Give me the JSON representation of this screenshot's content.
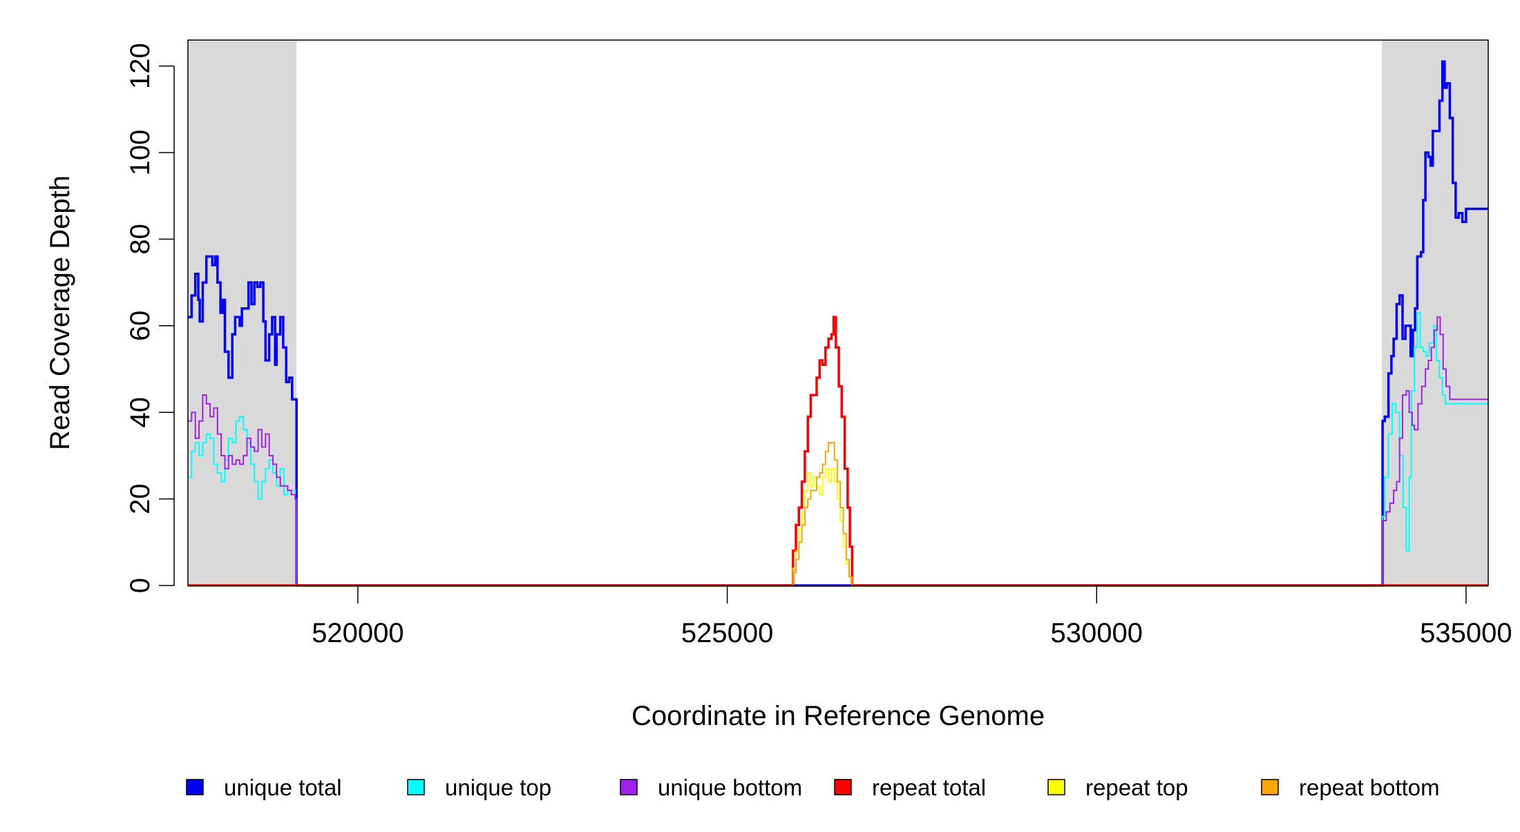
{
  "chart_data": {
    "type": "line",
    "title": "",
    "xlabel": "Coordinate in Reference Genome",
    "ylabel": "Read Coverage Depth",
    "xlim": [
      517700,
      535300
    ],
    "ylim": [
      0,
      126
    ],
    "x_ticks": [
      520000,
      525000,
      530000,
      535000
    ],
    "x_tick_labels": [
      "520000",
      "525000",
      "530000",
      "535000"
    ],
    "y_ticks": [
      0,
      20,
      40,
      60,
      80,
      100,
      120
    ],
    "y_tick_labels": [
      "0",
      "20",
      "40",
      "60",
      "80",
      "100",
      "120"
    ],
    "grid": false,
    "legend_position": "bottom",
    "shaded_regions": [
      {
        "x_start": 517700,
        "x_end": 519170,
        "color": "#d9d9d9"
      },
      {
        "x_start": 533860,
        "x_end": 535300,
        "color": "#d9d9d9"
      }
    ],
    "series": [
      {
        "name": "unique total",
        "color": "#0000ff",
        "points": [
          [
            517700,
            62
          ],
          [
            517750,
            67
          ],
          [
            517800,
            72
          ],
          [
            517840,
            66
          ],
          [
            517860,
            61
          ],
          [
            517900,
            70
          ],
          [
            517950,
            76
          ],
          [
            518000,
            76
          ],
          [
            518030,
            74
          ],
          [
            518070,
            76
          ],
          [
            518100,
            70
          ],
          [
            518140,
            63
          ],
          [
            518170,
            66
          ],
          [
            518200,
            54
          ],
          [
            518250,
            48
          ],
          [
            518300,
            58
          ],
          [
            518340,
            62
          ],
          [
            518400,
            60
          ],
          [
            518430,
            64
          ],
          [
            518480,
            64
          ],
          [
            518520,
            70
          ],
          [
            518560,
            65
          ],
          [
            518600,
            70
          ],
          [
            518640,
            69
          ],
          [
            518680,
            70
          ],
          [
            518720,
            61
          ],
          [
            518750,
            52
          ],
          [
            518800,
            58
          ],
          [
            518840,
            62
          ],
          [
            518880,
            51
          ],
          [
            518900,
            58
          ],
          [
            518950,
            62
          ],
          [
            518990,
            55
          ],
          [
            519030,
            47
          ],
          [
            519070,
            48
          ],
          [
            519110,
            43
          ],
          [
            519150,
            43
          ],
          [
            519170,
            0
          ],
          [
            525870,
            0
          ],
          [
            533860,
            0
          ],
          [
            533870,
            38
          ],
          [
            533900,
            39
          ],
          [
            533950,
            49
          ],
          [
            533990,
            53
          ],
          [
            534020,
            57
          ],
          [
            534060,
            65
          ],
          [
            534100,
            67
          ],
          [
            534140,
            57
          ],
          [
            534180,
            60
          ],
          [
            534220,
            60
          ],
          [
            534250,
            53
          ],
          [
            534280,
            59
          ],
          [
            534310,
            64
          ],
          [
            534340,
            76
          ],
          [
            534390,
            77
          ],
          [
            534420,
            89
          ],
          [
            534450,
            100
          ],
          [
            534490,
            99
          ],
          [
            534520,
            97
          ],
          [
            534550,
            105
          ],
          [
            534600,
            105
          ],
          [
            534640,
            112
          ],
          [
            534680,
            121
          ],
          [
            534710,
            115
          ],
          [
            534740,
            116
          ],
          [
            534780,
            108
          ],
          [
            534820,
            93
          ],
          [
            534860,
            85
          ],
          [
            534900,
            86
          ],
          [
            534950,
            84
          ],
          [
            535000,
            87
          ],
          [
            535300,
            87
          ]
        ]
      },
      {
        "name": "unique top",
        "color": "#00ffff",
        "points": [
          [
            517700,
            25
          ],
          [
            517750,
            31
          ],
          [
            517800,
            33
          ],
          [
            517850,
            30
          ],
          [
            517900,
            33
          ],
          [
            517950,
            35
          ],
          [
            518000,
            34
          ],
          [
            518050,
            28
          ],
          [
            518100,
            26
          ],
          [
            518150,
            24
          ],
          [
            518200,
            29
          ],
          [
            518250,
            34
          ],
          [
            518300,
            33
          ],
          [
            518350,
            38
          ],
          [
            518400,
            39
          ],
          [
            518450,
            36
          ],
          [
            518500,
            33
          ],
          [
            518550,
            28
          ],
          [
            518600,
            24
          ],
          [
            518650,
            20
          ],
          [
            518700,
            24
          ],
          [
            518750,
            27
          ],
          [
            518800,
            29
          ],
          [
            518850,
            26
          ],
          [
            518900,
            23
          ],
          [
            518950,
            27
          ],
          [
            519000,
            21
          ],
          [
            519050,
            22
          ],
          [
            519100,
            22
          ],
          [
            519150,
            20
          ],
          [
            519170,
            0
          ],
          [
            533860,
            0
          ],
          [
            533870,
            16
          ],
          [
            533900,
            25
          ],
          [
            533950,
            35
          ],
          [
            534000,
            42
          ],
          [
            534050,
            40
          ],
          [
            534100,
            30
          ],
          [
            534150,
            18
          ],
          [
            534190,
            8
          ],
          [
            534230,
            25
          ],
          [
            534260,
            45
          ],
          [
            534300,
            55
          ],
          [
            534340,
            63
          ],
          [
            534380,
            55
          ],
          [
            534420,
            54
          ],
          [
            534460,
            53
          ],
          [
            534500,
            56
          ],
          [
            534560,
            60
          ],
          [
            534600,
            52
          ],
          [
            534640,
            48
          ],
          [
            534680,
            44
          ],
          [
            534720,
            42
          ],
          [
            535300,
            42
          ]
        ]
      },
      {
        "name": "unique bottom",
        "color": "#a020f0",
        "points": [
          [
            517700,
            38
          ],
          [
            517750,
            40
          ],
          [
            517800,
            34
          ],
          [
            517850,
            38
          ],
          [
            517900,
            44
          ],
          [
            517950,
            42
          ],
          [
            518000,
            39
          ],
          [
            518050,
            41
          ],
          [
            518100,
            35
          ],
          [
            518150,
            30
          ],
          [
            518200,
            27
          ],
          [
            518250,
            30
          ],
          [
            518300,
            28
          ],
          [
            518350,
            29
          ],
          [
            518400,
            28
          ],
          [
            518450,
            30
          ],
          [
            518500,
            34
          ],
          [
            518550,
            32
          ],
          [
            518600,
            31
          ],
          [
            518650,
            36
          ],
          [
            518700,
            32
          ],
          [
            518750,
            35
          ],
          [
            518800,
            30
          ],
          [
            518850,
            28
          ],
          [
            518900,
            25
          ],
          [
            518950,
            23
          ],
          [
            519000,
            23
          ],
          [
            519050,
            22
          ],
          [
            519100,
            21
          ],
          [
            519150,
            20
          ],
          [
            519170,
            0
          ],
          [
            533860,
            0
          ],
          [
            533870,
            15
          ],
          [
            533920,
            17
          ],
          [
            533970,
            19
          ],
          [
            534020,
            22
          ],
          [
            534060,
            24
          ],
          [
            534100,
            34
          ],
          [
            534140,
            44
          ],
          [
            534190,
            45
          ],
          [
            534230,
            40
          ],
          [
            534270,
            37
          ],
          [
            534300,
            36
          ],
          [
            534350,
            42
          ],
          [
            534400,
            46
          ],
          [
            534450,
            50
          ],
          [
            534490,
            52
          ],
          [
            534530,
            55
          ],
          [
            534570,
            59
          ],
          [
            534610,
            62
          ],
          [
            534650,
            58
          ],
          [
            534690,
            50
          ],
          [
            534730,
            46
          ],
          [
            534780,
            43
          ],
          [
            535300,
            43
          ]
        ]
      },
      {
        "name": "repeat total",
        "color": "#ff0000",
        "points": [
          [
            517700,
            0
          ],
          [
            525870,
            0
          ],
          [
            525890,
            8
          ],
          [
            525930,
            14
          ],
          [
            525970,
            18
          ],
          [
            526010,
            24
          ],
          [
            526050,
            31
          ],
          [
            526090,
            39
          ],
          [
            526130,
            44
          ],
          [
            526170,
            44
          ],
          [
            526210,
            48
          ],
          [
            526250,
            52
          ],
          [
            526290,
            51
          ],
          [
            526330,
            55
          ],
          [
            526370,
            57
          ],
          [
            526410,
            58
          ],
          [
            526440,
            62
          ],
          [
            526470,
            55
          ],
          [
            526510,
            46
          ],
          [
            526550,
            39
          ],
          [
            526590,
            27
          ],
          [
            526630,
            18
          ],
          [
            526660,
            9
          ],
          [
            526690,
            0
          ],
          [
            535300,
            0
          ]
        ]
      },
      {
        "name": "repeat top",
        "color": "#ffff00",
        "points": [
          [
            517700,
            0
          ],
          [
            525870,
            0
          ],
          [
            525890,
            4
          ],
          [
            525930,
            8
          ],
          [
            525970,
            13
          ],
          [
            526010,
            17
          ],
          [
            526050,
            22
          ],
          [
            526090,
            26
          ],
          [
            526130,
            23
          ],
          [
            526170,
            25
          ],
          [
            526210,
            23
          ],
          [
            526250,
            21
          ],
          [
            526290,
            25
          ],
          [
            526330,
            27
          ],
          [
            526370,
            24
          ],
          [
            526410,
            27
          ],
          [
            526450,
            24
          ],
          [
            526490,
            20
          ],
          [
            526530,
            15
          ],
          [
            526570,
            9
          ],
          [
            526610,
            5
          ],
          [
            526650,
            2
          ],
          [
            526690,
            0
          ],
          [
            535300,
            0
          ]
        ]
      },
      {
        "name": "repeat bottom",
        "color": "#ffa500",
        "points": [
          [
            517700,
            0
          ],
          [
            525870,
            0
          ],
          [
            525890,
            3
          ],
          [
            525930,
            6
          ],
          [
            525970,
            10
          ],
          [
            526010,
            14
          ],
          [
            526050,
            18
          ],
          [
            526090,
            20
          ],
          [
            526130,
            22
          ],
          [
            526170,
            22
          ],
          [
            526210,
            25
          ],
          [
            526250,
            26
          ],
          [
            526290,
            28
          ],
          [
            526330,
            31
          ],
          [
            526370,
            33
          ],
          [
            526410,
            33
          ],
          [
            526450,
            29
          ],
          [
            526490,
            24
          ],
          [
            526530,
            18
          ],
          [
            526570,
            12
          ],
          [
            526610,
            6
          ],
          [
            526650,
            2
          ],
          [
            526690,
            0
          ],
          [
            535300,
            0
          ]
        ]
      }
    ]
  }
}
